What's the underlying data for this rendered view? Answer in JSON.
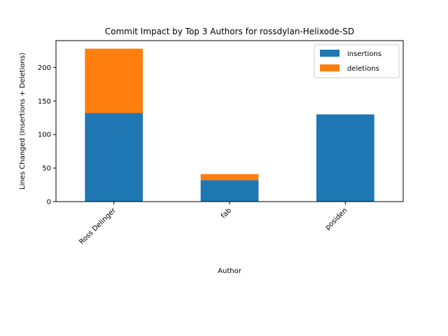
{
  "chart_data": {
    "type": "bar",
    "stacked": true,
    "title": "Commit Impact by Top 3 Authors for rossdylan-Helixode-SD",
    "xlabel": "Author",
    "ylabel": "Lines Changed (Insertions + Deletions)",
    "categories": [
      "Ross Delinger",
      "fab",
      "posiden"
    ],
    "series": [
      {
        "name": "insertions",
        "values": [
          132,
          32,
          130
        ],
        "color": "#1f77b4"
      },
      {
        "name": "deletions",
        "values": [
          96,
          9,
          0
        ],
        "color": "#ff7f0e"
      }
    ],
    "ylim": [
      0,
      240
    ],
    "yticks": [
      0,
      50,
      100,
      150,
      200
    ],
    "grid": false,
    "legend_position": "top-right"
  }
}
